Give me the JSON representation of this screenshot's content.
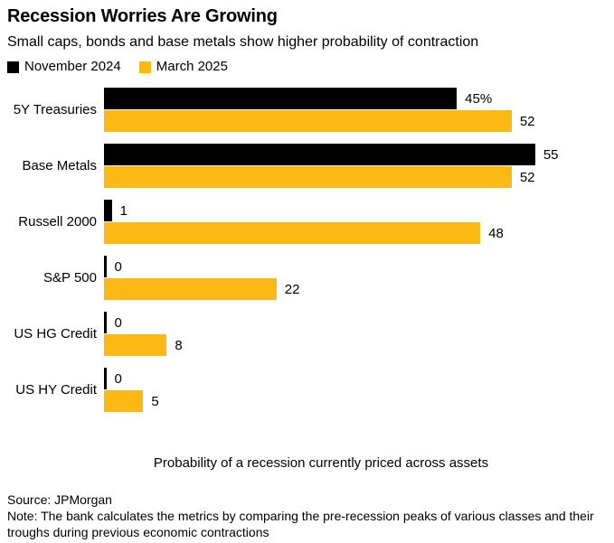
{
  "header": {
    "title": "Recession Worries Are Growing",
    "subtitle": "Small caps, bonds and base metals show higher probability of contraction"
  },
  "chart_data": {
    "type": "bar",
    "orientation": "horizontal",
    "title": "Recession Worries Are Growing",
    "subtitle": "Small caps, bonds and base metals show higher probability of contraction",
    "categories": [
      "5Y Treasuries",
      "Base Metals",
      "Russell 2000",
      "S&P 500",
      "US HG Credit",
      "US HY Credit"
    ],
    "series": [
      {
        "name": "November 2024",
        "color": "#000000",
        "values": [
          45,
          55,
          1,
          0,
          0,
          0
        ],
        "value_labels": [
          "45%",
          "55",
          "1",
          "0",
          "0",
          "0"
        ]
      },
      {
        "name": "March 2025",
        "color": "#FDB913",
        "values": [
          52,
          52,
          48,
          22,
          8,
          5
        ],
        "value_labels": [
          "52",
          "52",
          "48",
          "22",
          "8",
          "5"
        ]
      }
    ],
    "xlabel": "Probability of a recession currently priced across assets",
    "xlim": [
      0,
      65
    ],
    "grid": false,
    "legend_position": "top",
    "value_labels_shown": true
  },
  "footer": {
    "source": "Source: JPMorgan",
    "note": "Note: The bank calculates the metrics by comparing the pre-recession peaks of various classes and their troughs during previous economic contractions"
  }
}
